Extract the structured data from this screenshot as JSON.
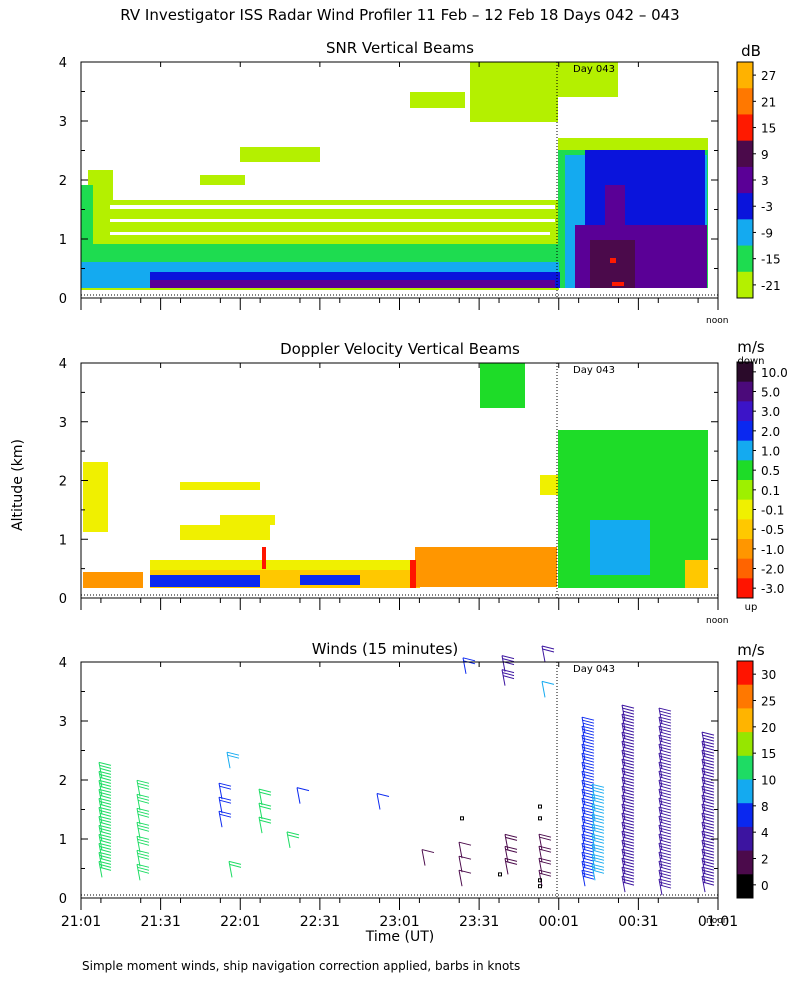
{
  "figure": {
    "title": "RV Investigator ISS Radar Wind Profiler  11 Feb – 12 Feb 18 Days 042 – 043",
    "y_axis_label": "Altitude (km)",
    "x_axis_label": "Time (UT)",
    "footnote": "Simple moment winds, ship navigation correction applied, barbs in knots",
    "day_marker_label": "Day 043",
    "noon_label": "noon"
  },
  "chart_data": [
    {
      "type": "heatmap",
      "title": "SNR Vertical Beams",
      "ylabel": "Altitude (km)",
      "ylim": [
        0,
        4
      ],
      "y_ticks": [
        "0",
        "1",
        "2",
        "3",
        "4"
      ],
      "x_range": [
        "21:01",
        "01:01"
      ],
      "colorbar": {
        "unit": "dB",
        "tick_labels": [
          "27",
          "21",
          "15",
          "9",
          "3",
          "-3",
          "-9",
          "-15",
          "-21"
        ],
        "colors": [
          "#ffb200",
          "#ff7800",
          "#ff1a00",
          "#4b0a4b",
          "#5a0096",
          "#0a14dc",
          "#14aaf0",
          "#1edc50",
          "#b4f000"
        ]
      }
    },
    {
      "type": "heatmap",
      "title": "Doppler Velocity Vertical Beams",
      "ylabel": "Altitude (km)",
      "ylim": [
        0,
        4
      ],
      "y_ticks": [
        "0",
        "1",
        "2",
        "3",
        "4"
      ],
      "x_range": [
        "21:01",
        "01:01"
      ],
      "colorbar": {
        "unit": "m/s",
        "top_label": "down",
        "bottom_label": "up",
        "tick_labels": [
          "10.0",
          "5.0",
          "3.0",
          "2.0",
          "1.0",
          "0.5",
          "0.1",
          "-0.1",
          "-0.5",
          "-1.0",
          "-2.0",
          "-3.0"
        ],
        "colors": [
          "#2a0a2a",
          "#4b0a7a",
          "#3c14c8",
          "#0a28f0",
          "#14aaf0",
          "#1edc28",
          "#9ef000",
          "#f0f000",
          "#ffc800",
          "#ff9600",
          "#ff6400",
          "#ff1400"
        ]
      }
    },
    {
      "type": "scatter",
      "title": "Winds (15 minutes)",
      "ylabel": "Altitude (km)",
      "xlabel": "Time (UT)",
      "ylim": [
        0,
        4
      ],
      "y_ticks": [
        "0",
        "1",
        "2",
        "3",
        "4"
      ],
      "x_ticks": [
        "21:01",
        "21:31",
        "22:01",
        "22:31",
        "23:01",
        "23:31",
        "00:01",
        "00:31",
        "01:01"
      ],
      "colorbar": {
        "unit": "m/s",
        "tick_labels": [
          "30",
          "25",
          "20",
          "15",
          "10",
          "8",
          "4",
          "2",
          "0"
        ],
        "colors": [
          "#ff1400",
          "#ff7800",
          "#ffb400",
          "#96e600",
          "#1edc64",
          "#14aaf0",
          "#0a28f0",
          "#3c14a0",
          "#4b0a4b",
          "#000000"
        ]
      }
    }
  ]
}
